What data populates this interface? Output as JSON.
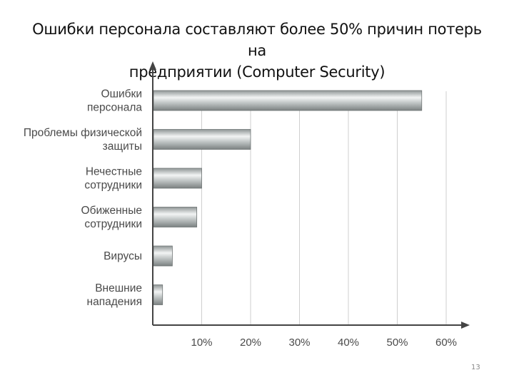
{
  "slide": {
    "title_line1": "Ошибки персонала составляют более 50% причин потерь на",
    "title_line2": "предприятии (Computer Security)",
    "page_number": "13"
  },
  "chart_data": {
    "type": "bar",
    "orientation": "horizontal",
    "categories": [
      [
        "Ошибки",
        "персонала"
      ],
      [
        "Проблемы физической",
        "защиты"
      ],
      [
        "Нечестные",
        "сотрудники"
      ],
      [
        "Обиженные",
        "сотрудники"
      ],
      [
        "Вирусы"
      ],
      [
        "Внешние",
        "нападения"
      ]
    ],
    "values": [
      55,
      20,
      10,
      9,
      4,
      2
    ],
    "xlim": [
      0,
      60
    ],
    "x_ticks": [
      10,
      20,
      30,
      40,
      50,
      60
    ],
    "x_tick_labels": [
      "10%",
      "20%",
      "30%",
      "40%",
      "50%",
      "60%"
    ],
    "grid": true,
    "bar_color": "#a9aeae"
  }
}
